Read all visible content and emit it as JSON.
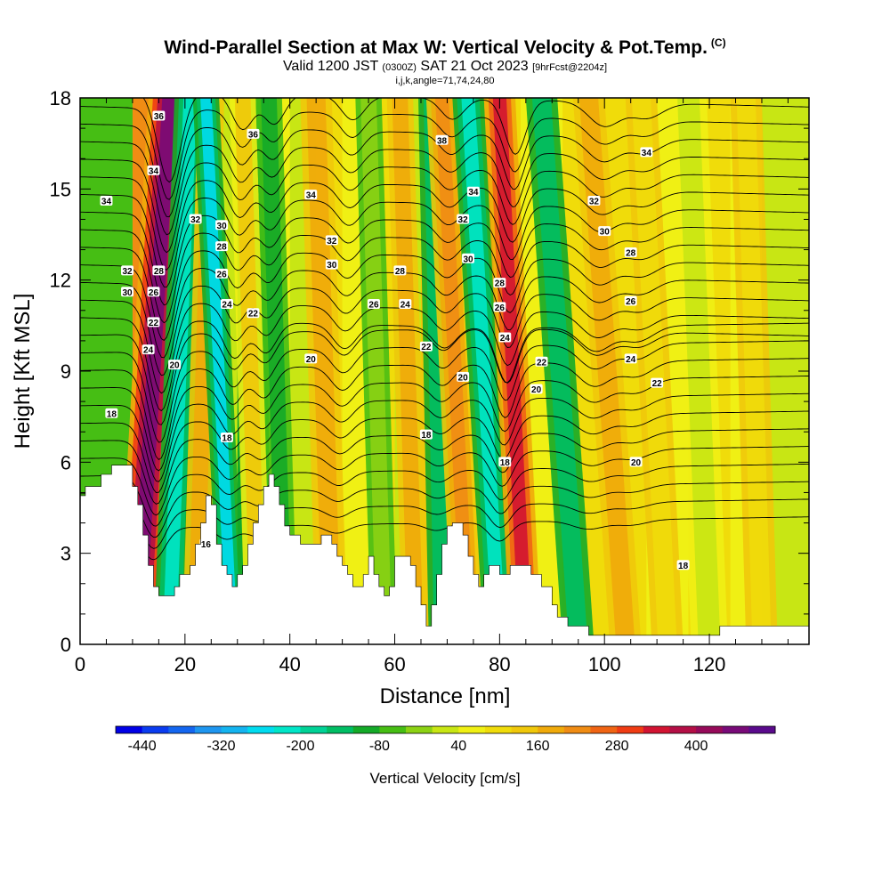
{
  "header": {
    "title": "Wind-Parallel Section at Max W: Vertical Velocity & Pot.Temp.",
    "title_mark": "(C)",
    "valid_prefix": "Valid 1200 JST",
    "valid_utc": "(0300Z)",
    "valid_date": "SAT 21 Oct 2023",
    "forecast_tag": "[9hrFcst@2204z]",
    "params": "i,j,k,angle=71,74,24,80"
  },
  "chart_data": {
    "type": "heatmap",
    "xlabel": "Distance [nm]",
    "ylabel": "Height [Kft MSL]",
    "xlim": [
      0,
      139
    ],
    "ylim": [
      0,
      18
    ],
    "x_ticks": [
      0,
      20,
      40,
      60,
      80,
      100,
      120
    ],
    "y_ticks": [
      0,
      3,
      6,
      9,
      12,
      15,
      18
    ],
    "colorbar": {
      "title": "Vertical Velocity [cm/s]",
      "tick_labels": [
        "-440",
        "-320",
        "-200",
        "-80",
        "40",
        "160",
        "280",
        "400"
      ],
      "tick_values": [
        -440,
        -320,
        -200,
        -80,
        40,
        160,
        280,
        400
      ],
      "min": -480,
      "step": 40,
      "colors": [
        "#0000e6",
        "#0a3cf0",
        "#1466f0",
        "#1e96f0",
        "#14b4f0",
        "#00dcf0",
        "#00e6c8",
        "#00d296",
        "#00be64",
        "#14aa28",
        "#46be14",
        "#8cd214",
        "#c8e614",
        "#f0f014",
        "#f0dc0a",
        "#f0c80a",
        "#f0aa0a",
        "#f08c14",
        "#f06414",
        "#f03c14",
        "#d21432",
        "#b40f46",
        "#960a5a",
        "#780a78",
        "#5a0a8c"
      ]
    },
    "terrain_kft": [
      [
        0,
        4.9
      ],
      [
        1,
        4.9
      ],
      [
        1,
        5.2
      ],
      [
        4,
        5.2
      ],
      [
        4,
        5.6
      ],
      [
        6,
        5.6
      ],
      [
        6,
        5.9
      ],
      [
        10,
        5.9
      ],
      [
        10,
        5.2
      ],
      [
        11,
        5.2
      ],
      [
        11,
        4.6
      ],
      [
        12,
        4.6
      ],
      [
        12,
        3.6
      ],
      [
        13,
        3.6
      ],
      [
        13,
        2.6
      ],
      [
        14,
        2.6
      ],
      [
        14,
        1.9
      ],
      [
        15,
        1.9
      ],
      [
        15,
        1.6
      ],
      [
        18,
        1.6
      ],
      [
        18,
        1.9
      ],
      [
        19,
        1.9
      ],
      [
        19,
        2.3
      ],
      [
        21,
        2.3
      ],
      [
        21,
        2.6
      ],
      [
        22,
        2.6
      ],
      [
        22,
        3.3
      ],
      [
        23,
        3.3
      ],
      [
        23,
        4.0
      ],
      [
        24,
        4.0
      ],
      [
        24,
        4.9
      ],
      [
        25,
        4.9
      ],
      [
        25,
        4.6
      ],
      [
        26,
        4.6
      ],
      [
        26,
        3.3
      ],
      [
        27,
        3.3
      ],
      [
        27,
        2.6
      ],
      [
        28,
        2.6
      ],
      [
        28,
        2.3
      ],
      [
        29,
        2.3
      ],
      [
        29,
        1.9
      ],
      [
        30,
        1.9
      ],
      [
        30,
        2.3
      ],
      [
        31,
        2.3
      ],
      [
        31,
        2.6
      ],
      [
        32,
        2.6
      ],
      [
        32,
        3.3
      ],
      [
        33,
        3.3
      ],
      [
        33,
        4.0
      ],
      [
        34,
        4.0
      ],
      [
        34,
        4.6
      ],
      [
        35,
        4.6
      ],
      [
        35,
        5.2
      ],
      [
        36,
        5.2
      ],
      [
        36,
        5.6
      ],
      [
        37,
        5.6
      ],
      [
        37,
        5.2
      ],
      [
        38,
        5.2
      ],
      [
        38,
        4.6
      ],
      [
        39,
        4.6
      ],
      [
        39,
        3.9
      ],
      [
        40,
        3.9
      ],
      [
        40,
        3.6
      ],
      [
        42,
        3.6
      ],
      [
        42,
        3.3
      ],
      [
        46,
        3.3
      ],
      [
        46,
        3.6
      ],
      [
        48,
        3.6
      ],
      [
        48,
        3.3
      ],
      [
        49,
        3.3
      ],
      [
        49,
        2.9
      ],
      [
        50,
        2.9
      ],
      [
        50,
        2.6
      ],
      [
        51,
        2.6
      ],
      [
        51,
        2.3
      ],
      [
        52,
        2.3
      ],
      [
        52,
        1.9
      ],
      [
        54,
        1.9
      ],
      [
        54,
        2.3
      ],
      [
        55,
        2.3
      ],
      [
        55,
        2.9
      ],
      [
        56,
        2.9
      ],
      [
        56,
        2.3
      ],
      [
        57,
        2.3
      ],
      [
        57,
        1.9
      ],
      [
        58,
        1.9
      ],
      [
        58,
        1.6
      ],
      [
        59,
        1.6
      ],
      [
        59,
        1.9
      ],
      [
        60,
        1.9
      ],
      [
        60,
        2.9
      ],
      [
        63,
        2.9
      ],
      [
        63,
        2.6
      ],
      [
        64,
        2.6
      ],
      [
        64,
        1.9
      ],
      [
        65,
        1.9
      ],
      [
        65,
        1.3
      ],
      [
        66,
        1.3
      ],
      [
        66,
        0.6
      ],
      [
        67,
        0.6
      ],
      [
        67,
        1.3
      ],
      [
        68,
        1.3
      ],
      [
        68,
        2.3
      ],
      [
        69,
        2.3
      ],
      [
        69,
        3.3
      ],
      [
        70,
        3.3
      ],
      [
        70,
        3.9
      ],
      [
        71,
        3.9
      ],
      [
        71,
        4.0
      ],
      [
        73,
        4.0
      ],
      [
        73,
        3.6
      ],
      [
        74,
        3.6
      ],
      [
        74,
        2.9
      ],
      [
        75,
        2.9
      ],
      [
        75,
        2.3
      ],
      [
        76,
        2.3
      ],
      [
        76,
        1.9
      ],
      [
        77,
        1.9
      ],
      [
        77,
        2.3
      ],
      [
        78,
        2.3
      ],
      [
        78,
        2.6
      ],
      [
        80,
        2.6
      ],
      [
        80,
        2.3
      ],
      [
        82,
        2.3
      ],
      [
        82,
        2.6
      ],
      [
        86,
        2.6
      ],
      [
        86,
        2.3
      ],
      [
        88,
        2.3
      ],
      [
        88,
        1.9
      ],
      [
        90,
        1.9
      ],
      [
        90,
        1.3
      ],
      [
        91,
        1.3
      ],
      [
        91,
        0.9
      ],
      [
        93,
        0.9
      ],
      [
        93,
        0.6
      ],
      [
        97,
        0.6
      ],
      [
        97,
        0.3
      ],
      [
        122,
        0.3
      ],
      [
        122,
        0.6
      ],
      [
        139,
        0.6
      ]
    ],
    "contour_labels": [
      {
        "x": 15,
        "y": 17.4,
        "t": "36"
      },
      {
        "x": 14,
        "y": 15.6,
        "t": "34"
      },
      {
        "x": 5,
        "y": 14.6,
        "t": "34"
      },
      {
        "x": 33,
        "y": 16.8,
        "t": "36"
      },
      {
        "x": 69,
        "y": 16.6,
        "t": "38"
      },
      {
        "x": 108,
        "y": 16.2,
        "t": "34"
      },
      {
        "x": 44,
        "y": 14.8,
        "t": "34"
      },
      {
        "x": 75,
        "y": 14.9,
        "t": "34"
      },
      {
        "x": 22,
        "y": 14.0,
        "t": "32"
      },
      {
        "x": 27,
        "y": 13.8,
        "t": "30"
      },
      {
        "x": 27,
        "y": 13.1,
        "t": "28"
      },
      {
        "x": 27,
        "y": 12.2,
        "t": "26"
      },
      {
        "x": 28,
        "y": 11.2,
        "t": "24"
      },
      {
        "x": 33,
        "y": 10.9,
        "t": "22"
      },
      {
        "x": 15,
        "y": 12.3,
        "t": "28"
      },
      {
        "x": 14,
        "y": 11.6,
        "t": "26"
      },
      {
        "x": 9,
        "y": 12.3,
        "t": "32"
      },
      {
        "x": 9,
        "y": 11.6,
        "t": "30"
      },
      {
        "x": 14,
        "y": 10.6,
        "t": "22"
      },
      {
        "x": 13,
        "y": 9.7,
        "t": "24"
      },
      {
        "x": 18,
        "y": 9.2,
        "t": "20"
      },
      {
        "x": 6,
        "y": 7.6,
        "t": "18"
      },
      {
        "x": 28,
        "y": 6.8,
        "t": "18"
      },
      {
        "x": 24,
        "y": 3.3,
        "t": "16"
      },
      {
        "x": 48,
        "y": 13.3,
        "t": "32"
      },
      {
        "x": 48,
        "y": 12.5,
        "t": "30"
      },
      {
        "x": 61,
        "y": 12.3,
        "t": "28"
      },
      {
        "x": 56,
        "y": 11.2,
        "t": "26"
      },
      {
        "x": 62,
        "y": 11.2,
        "t": "24"
      },
      {
        "x": 44,
        "y": 9.4,
        "t": "20"
      },
      {
        "x": 66,
        "y": 9.8,
        "t": "22"
      },
      {
        "x": 66,
        "y": 6.9,
        "t": "18"
      },
      {
        "x": 73,
        "y": 14.0,
        "t": "32"
      },
      {
        "x": 74,
        "y": 12.7,
        "t": "30"
      },
      {
        "x": 80,
        "y": 11.9,
        "t": "28"
      },
      {
        "x": 80,
        "y": 11.1,
        "t": "26"
      },
      {
        "x": 81,
        "y": 10.1,
        "t": "24"
      },
      {
        "x": 73,
        "y": 8.8,
        "t": "20"
      },
      {
        "x": 81,
        "y": 6.0,
        "t": "18"
      },
      {
        "x": 98,
        "y": 14.6,
        "t": "32"
      },
      {
        "x": 100,
        "y": 13.6,
        "t": "30"
      },
      {
        "x": 105,
        "y": 12.9,
        "t": "28"
      },
      {
        "x": 105,
        "y": 11.3,
        "t": "26"
      },
      {
        "x": 105,
        "y": 9.4,
        "t": "24"
      },
      {
        "x": 88,
        "y": 9.3,
        "t": "22"
      },
      {
        "x": 87,
        "y": 8.4,
        "t": "20"
      },
      {
        "x": 110,
        "y": 8.6,
        "t": "22"
      },
      {
        "x": 106,
        "y": 6.0,
        "t": "20"
      },
      {
        "x": 115,
        "y": 2.6,
        "t": "18"
      }
    ]
  }
}
